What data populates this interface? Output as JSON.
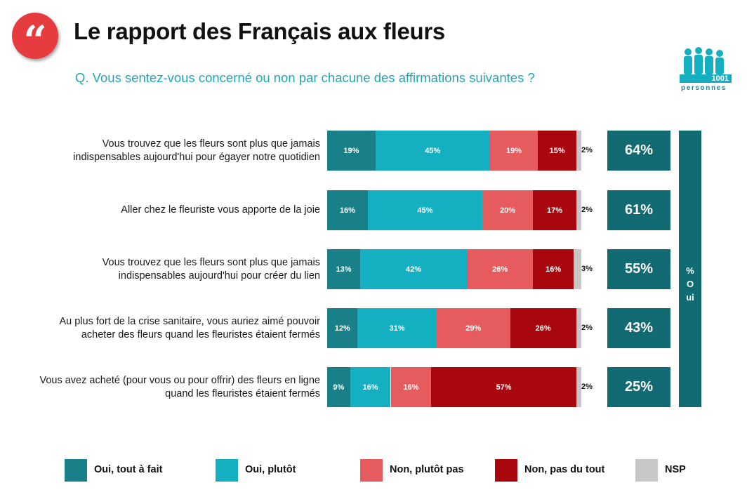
{
  "header": {
    "title": "Le rapport des Français aux fleurs",
    "question": "Q. Vous sentez-vous concerné ou non par chacune des affirmations suivantes ?",
    "quote_glyph": "“",
    "sample_count": "1001",
    "sample_word": "personnes",
    "badge_color": "#e63b3f"
  },
  "colors": {
    "oui_tout_a_fait": "#19808a",
    "oui_plutot": "#14b0c1",
    "non_plutot_pas": "#e55b5e",
    "non_pas_du_tout": "#a8070d",
    "nsp": "#c8c8c8",
    "total_box": "#126b73"
  },
  "chart_data": {
    "type": "bar",
    "orientation": "horizontal",
    "stacked": true,
    "categories": [
      "Vous trouvez que les fleurs sont plus que jamais indispensables aujourd'hui pour égayer notre quotidien",
      "Aller chez le fleuriste vous apporte de la joie",
      "Vous trouvez que les fleurs sont plus que jamais indispensables aujourd'hui pour créer du lien",
      "Au plus fort de la crise sanitaire, vous auriez aimé pouvoir acheter des fleurs quand les fleuristes étaient fermés",
      "Vous avez acheté (pour vous ou pour offrir) des fleurs en ligne quand les fleuristes étaient fermés"
    ],
    "series": [
      {
        "name": "Oui, tout à fait",
        "values": [
          19,
          16,
          13,
          12,
          9
        ]
      },
      {
        "name": "Oui, plutôt",
        "values": [
          45,
          45,
          42,
          31,
          16
        ]
      },
      {
        "name": "Non, plutôt pas",
        "values": [
          19,
          20,
          26,
          29,
          16
        ]
      },
      {
        "name": "Non, pas du tout",
        "values": [
          15,
          17,
          16,
          26,
          57
        ]
      },
      {
        "name": "NSP",
        "values": [
          2,
          2,
          3,
          2,
          2
        ]
      }
    ],
    "totals": {
      "label": "% Oui",
      "values": [
        "64%",
        "61%",
        "55%",
        "43%",
        "25%"
      ]
    },
    "xlim": [
      0,
      100
    ],
    "value_suffix": "%",
    "legend": "bottom"
  }
}
